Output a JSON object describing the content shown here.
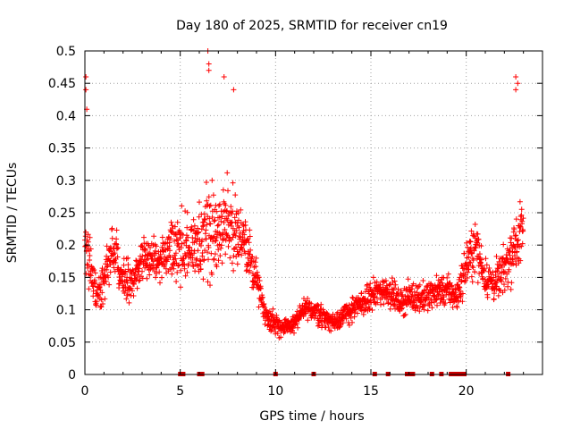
{
  "chart_data": {
    "type": "scatter",
    "title": "Day 180 of 2025, SRMTID for receiver cn19",
    "xlabel": "GPS time / hours",
    "ylabel": "SRMTID / TECUs",
    "xlim": [
      0,
      24
    ],
    "ylim": [
      0,
      0.5
    ],
    "x_ticks": [
      0,
      5,
      10,
      15,
      20
    ],
    "x_tick_labels": [
      "0",
      "5",
      "10",
      "15",
      "20"
    ],
    "y_ticks": [
      0,
      0.05,
      0.1,
      0.15,
      0.2,
      0.25,
      0.3,
      0.35,
      0.4,
      0.45,
      0.5
    ],
    "y_tick_labels": [
      "0",
      "0.05",
      "0.1",
      "0.15",
      "0.2",
      "0.25",
      "0.3",
      "0.35",
      "0.4",
      "0.45",
      "0.5"
    ],
    "grid": true,
    "marker": "+",
    "color": "#ff0000",
    "envelope_profile": {
      "x": [
        0,
        0.3,
        0.6,
        1,
        1.5,
        2,
        2.5,
        3,
        3.5,
        4,
        4.5,
        5,
        5.5,
        6,
        6.5,
        7,
        7.5,
        8,
        8.5,
        9,
        9.5,
        10,
        10.5,
        11,
        11.5,
        12,
        12.5,
        13,
        13.5,
        14,
        14.5,
        15,
        15.5,
        16,
        16.5,
        17,
        17.5,
        18,
        18.5,
        19,
        19.5,
        20,
        20.5,
        21,
        21.5,
        22,
        22.5,
        23
      ],
      "y_center": [
        0.2,
        0.16,
        0.13,
        0.14,
        0.2,
        0.15,
        0.14,
        0.18,
        0.18,
        0.17,
        0.19,
        0.2,
        0.19,
        0.2,
        0.23,
        0.22,
        0.24,
        0.22,
        0.19,
        0.15,
        0.09,
        0.08,
        0.07,
        0.08,
        0.1,
        0.1,
        0.09,
        0.08,
        0.09,
        0.1,
        0.11,
        0.12,
        0.13,
        0.13,
        0.11,
        0.12,
        0.12,
        0.12,
        0.13,
        0.13,
        0.12,
        0.17,
        0.2,
        0.15,
        0.14,
        0.16,
        0.2,
        0.22
      ],
      "y_spread": [
        0.12,
        0.08,
        0.05,
        0.06,
        0.07,
        0.05,
        0.05,
        0.06,
        0.06,
        0.06,
        0.07,
        0.09,
        0.1,
        0.1,
        0.12,
        0.1,
        0.11,
        0.09,
        0.07,
        0.05,
        0.025,
        0.03,
        0.025,
        0.025,
        0.03,
        0.03,
        0.03,
        0.025,
        0.03,
        0.03,
        0.03,
        0.04,
        0.04,
        0.04,
        0.03,
        0.04,
        0.04,
        0.04,
        0.04,
        0.04,
        0.04,
        0.06,
        0.07,
        0.05,
        0.05,
        0.06,
        0.08,
        0.09
      ]
    },
    "outliers": [
      {
        "x": 0.05,
        "y": 0.46
      },
      {
        "x": 0.05,
        "y": 0.44
      },
      {
        "x": 0.1,
        "y": 0.41
      },
      {
        "x": 6.45,
        "y": 0.5
      },
      {
        "x": 6.5,
        "y": 0.48
      },
      {
        "x": 6.5,
        "y": 0.47
      },
      {
        "x": 7.3,
        "y": 0.46
      },
      {
        "x": 7.8,
        "y": 0.44
      },
      {
        "x": 22.6,
        "y": 0.46
      },
      {
        "x": 22.7,
        "y": 0.45
      },
      {
        "x": 22.6,
        "y": 0.44
      }
    ],
    "zero_value_hours": [
      5.0,
      5.15,
      6.0,
      6.15,
      10.0,
      12.0,
      15.2,
      15.9,
      16.9,
      17.0,
      17.1,
      17.2,
      18.2,
      18.7,
      19.2,
      19.3,
      19.4,
      19.5,
      19.6,
      19.7,
      19.9,
      22.2
    ]
  }
}
